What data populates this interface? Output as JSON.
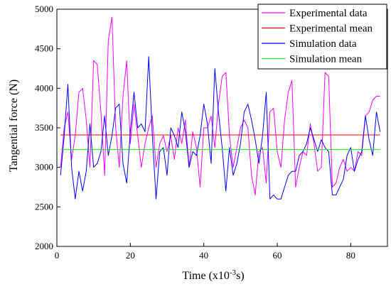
{
  "chart_data": {
    "type": "line",
    "title": "",
    "xlabel": {
      "base": "Time (x10",
      "sup": "-3",
      "tail": "s)"
    },
    "ylabel": "Tangential force (N)",
    "xlim": [
      0,
      90
    ],
    "ylim": [
      2000,
      5000
    ],
    "xticks": [
      0,
      20,
      40,
      60,
      80
    ],
    "yticks": [
      2000,
      2500,
      3000,
      3500,
      4000,
      4500,
      5000
    ],
    "grid": false,
    "legend_position": "top-right",
    "series": [
      {
        "name": "Experimental data",
        "color": "#ff00ff",
        "x": [
          1,
          2,
          3,
          4,
          5,
          6,
          7,
          8,
          9,
          10,
          11,
          12,
          13,
          14,
          15,
          16,
          17,
          18,
          19,
          20,
          21,
          22,
          23,
          24,
          25,
          26,
          27,
          28,
          29,
          30,
          31,
          32,
          33,
          34,
          35,
          36,
          37,
          38,
          39,
          40,
          41,
          42,
          43,
          44,
          45,
          46,
          47,
          48,
          49,
          50,
          51,
          52,
          53,
          54,
          55,
          56,
          57,
          58,
          59,
          60,
          61,
          62,
          63,
          64,
          65,
          66,
          67,
          68,
          69,
          70,
          71,
          72,
          73,
          74,
          75,
          76,
          77,
          78,
          79,
          80,
          81,
          82,
          83,
          84,
          85,
          86,
          87,
          88
        ],
        "values": [
          3000,
          3500,
          3700,
          3100,
          3400,
          3950,
          4000,
          3600,
          3000,
          4350,
          4300,
          3700,
          2900,
          4600,
          4900,
          3500,
          3000,
          3900,
          4350,
          3300,
          3800,
          3400,
          3000,
          3300,
          3500,
          3650,
          3000,
          3300,
          3400,
          3200,
          3400,
          3100,
          3500,
          3300,
          3600,
          3000,
          3450,
          3250,
          2750,
          3500,
          3500,
          3650,
          3250,
          3800,
          4150,
          4200,
          3400,
          3000,
          3250,
          3500,
          3600,
          3500,
          2900,
          2650,
          3200,
          3250,
          2800,
          3700,
          3750,
          3200,
          3000,
          3600,
          3950,
          4100,
          2750,
          3000,
          3200,
          3150,
          3550,
          3300,
          2950,
          3000,
          4200,
          4150,
          2750,
          2800,
          3000,
          3100,
          2950,
          3000,
          2950,
          3200,
          3150,
          3650,
          3700,
          3850,
          3900,
          3900
        ]
      },
      {
        "name": "Experimental mean",
        "color": "#ff0000",
        "x": [
          1,
          88
        ],
        "values": [
          3410,
          3410
        ]
      },
      {
        "name": "Simulation data",
        "color": "#0000ff",
        "x": [
          1,
          2,
          3,
          4,
          5,
          6,
          7,
          8,
          9,
          10,
          11,
          12,
          13,
          14,
          15,
          16,
          17,
          18,
          19,
          20,
          21,
          22,
          23,
          24,
          25,
          26,
          27,
          28,
          29,
          30,
          31,
          32,
          33,
          34,
          35,
          36,
          37,
          38,
          39,
          40,
          41,
          42,
          43,
          44,
          45,
          46,
          47,
          48,
          49,
          50,
          51,
          52,
          53,
          54,
          55,
          56,
          57,
          58,
          59,
          60,
          61,
          62,
          63,
          64,
          65,
          66,
          67,
          68,
          69,
          70,
          71,
          72,
          73,
          74,
          75,
          76,
          77,
          78,
          79,
          80,
          81,
          82,
          83,
          84,
          85,
          86,
          87,
          88
        ],
        "values": [
          2900,
          3400,
          4050,
          3000,
          2600,
          2950,
          2700,
          2950,
          3550,
          3000,
          3050,
          3200,
          3650,
          3150,
          3400,
          3750,
          3800,
          3050,
          2800,
          3450,
          3950,
          3500,
          3550,
          3450,
          4400,
          3400,
          2600,
          3200,
          3250,
          2900,
          3500,
          3400,
          3250,
          3700,
          3450,
          3000,
          3200,
          3150,
          3400,
          3800,
          3550,
          3050,
          4250,
          3700,
          3250,
          2700,
          3250,
          2900,
          3050,
          3300,
          3700,
          3800,
          3600,
          3350,
          3050,
          3400,
          3950,
          2600,
          2650,
          2600,
          2600,
          2750,
          2900,
          2950,
          2950,
          3150,
          3200,
          3300,
          3500,
          3350,
          3200,
          3350,
          3250,
          3200,
          2650,
          2650,
          2750,
          2850,
          3150,
          3250,
          2950,
          3100,
          3200,
          3650,
          3350,
          3150,
          3700,
          3450
        ]
      },
      {
        "name": "Simulation mean",
        "color": "#00ff00",
        "x": [
          1,
          88
        ],
        "values": [
          3225,
          3225
        ]
      }
    ]
  }
}
